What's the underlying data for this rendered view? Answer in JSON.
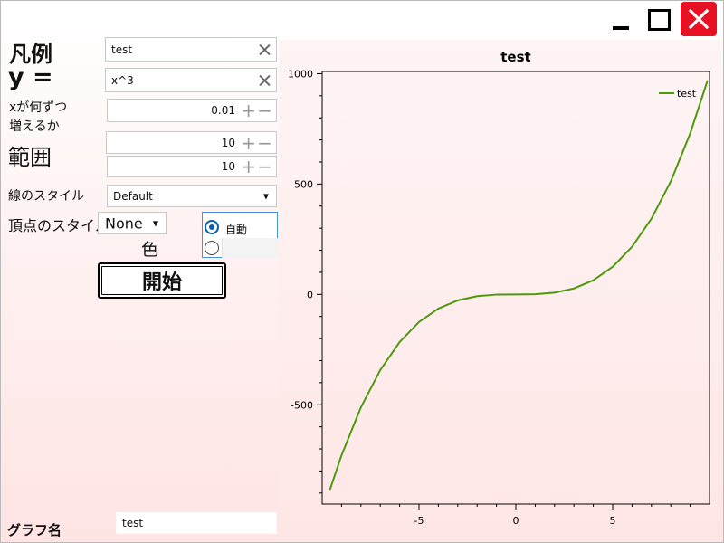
{
  "window": {
    "controls": [
      "minimize",
      "maximize",
      "close"
    ],
    "close_color": "#e81123"
  },
  "form": {
    "legend_label": "凡例",
    "legend_value": "test",
    "expr_label": "y =",
    "expr_value": "x^3",
    "step_label_line1": "xが何ずつ",
    "step_label_line2": "増えるか",
    "step_value": "0.01",
    "range_label": "範囲",
    "range_max": "10",
    "range_min": "-10",
    "linestyle_label": "線のスタイル",
    "linestyle_value": "Default",
    "vertex_label": "頂点のスタイル",
    "vertex_value": "None",
    "color_label": "色",
    "color_auto_label": "自動",
    "start_button": "開始",
    "graphname_label": "グラフ名",
    "graphname_value": "test"
  },
  "chart_data": {
    "type": "line",
    "title": "test",
    "xlabel": "",
    "ylabel": "",
    "xlim": [
      -10,
      10
    ],
    "ylim": [
      -950,
      1010
    ],
    "x_ticks": [
      -5,
      0,
      5
    ],
    "y_ticks": [
      -500,
      0,
      500,
      1000
    ],
    "legend_position": "top-right",
    "series": [
      {
        "name": "test",
        "color": "#4d9a0d",
        "x": [
          -9.6,
          -9,
          -8,
          -7,
          -6,
          -5,
          -4,
          -3,
          -2,
          -1,
          0,
          1,
          2,
          3,
          4,
          5,
          6,
          7,
          8,
          9,
          9.9
        ],
        "y": [
          -885,
          -729,
          -512,
          -343,
          -216,
          -125,
          -64,
          -27,
          -8,
          -1,
          0,
          1,
          8,
          27,
          64,
          125,
          216,
          343,
          512,
          729,
          970
        ]
      }
    ]
  }
}
